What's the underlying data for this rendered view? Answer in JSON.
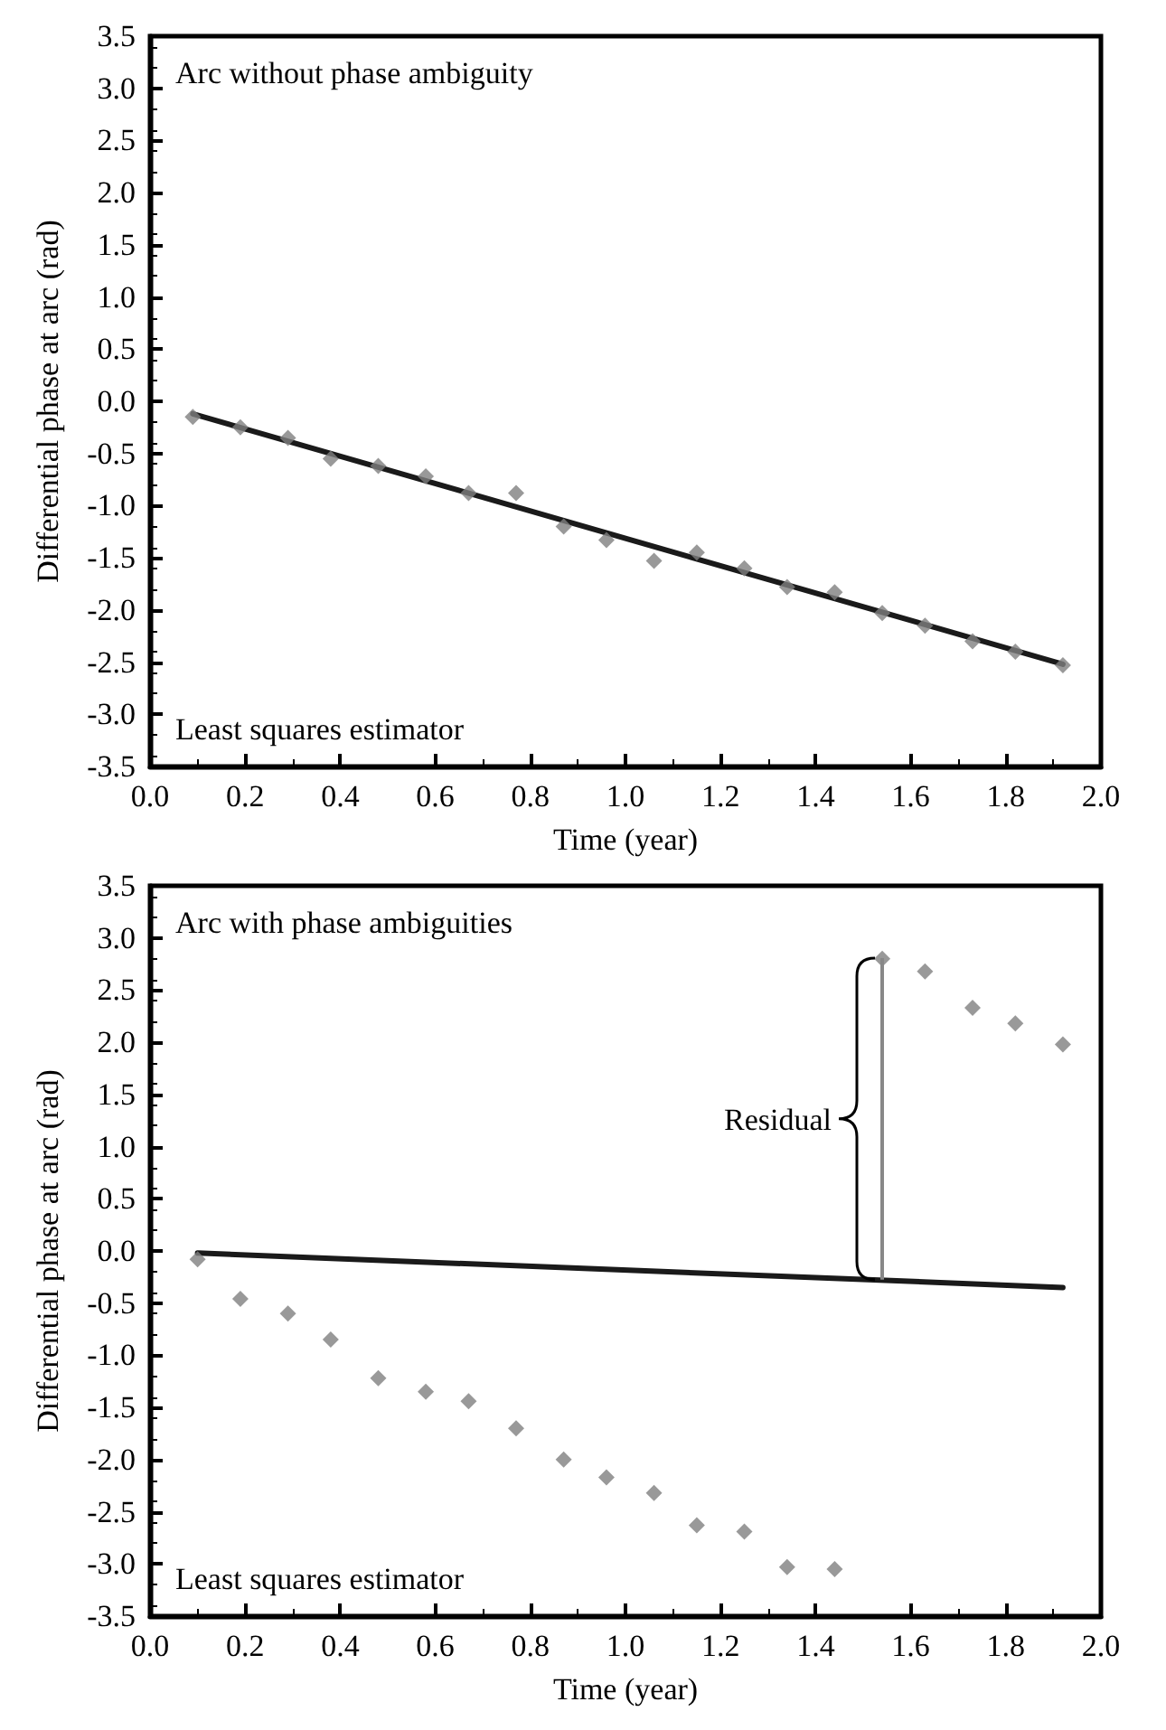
{
  "chart_data": [
    {
      "type": "scatter",
      "title": "Arc without phase ambiguity",
      "xlabel": "Time (year)",
      "ylabel": "Differential phase at arc (rad)",
      "x": [
        0.09,
        0.19,
        0.29,
        0.38,
        0.48,
        0.58,
        0.67,
        0.77,
        0.87,
        0.96,
        1.06,
        1.15,
        1.25,
        1.34,
        1.44,
        1.54,
        1.63,
        1.73,
        1.82,
        1.92
      ],
      "grid": false,
      "series": [
        {
          "marker": "diamond",
          "color": "#808080",
          "values": [
            -0.15,
            -0.25,
            -0.35,
            -0.55,
            -0.62,
            -0.72,
            -0.88,
            -0.88,
            -1.2,
            -1.33,
            -1.53,
            -1.45,
            -1.6,
            -1.78,
            -1.83,
            -2.03,
            -2.15,
            -2.3,
            -2.4,
            -2.53
          ]
        },
        {
          "type": "line",
          "color": "#1a1a1a",
          "x": [
            0.09,
            1.92
          ],
          "values": [
            -0.12,
            -2.52
          ]
        }
      ],
      "xlim": [
        0,
        2
      ],
      "xticks": [
        {
          "value": 0,
          "label": "0.0"
        },
        0.2,
        0.4,
        0.6,
        0.8,
        {
          "value": 1,
          "label": "1.0"
        },
        1.2,
        1.4,
        1.6,
        1.8,
        {
          "value": 2,
          "label": "2.0"
        }
      ],
      "ylim": [
        -3.5,
        3.5
      ],
      "yticks": [
        -3.5,
        {
          "value": -3,
          "label": "-3.0"
        },
        -2.5,
        {
          "value": -2,
          "label": "-2.0"
        },
        -1.5,
        {
          "value": -1,
          "label": "-1.0"
        },
        -0.5,
        {
          "value": 0,
          "label": "0.0"
        },
        0.5,
        {
          "value": 1,
          "label": "1.0"
        },
        1.5,
        {
          "value": 2,
          "label": "2.0"
        },
        2.5,
        {
          "value": 3,
          "label": "3.0"
        },
        3.5
      ],
      "annotations": [
        "Least squares estimator"
      ]
    },
    {
      "type": "scatter",
      "title": "Arc with phase ambiguities",
      "xlabel": "Time (year)",
      "ylabel": "Differential phase at arc (rad)",
      "x": [
        0.1,
        0.19,
        0.29,
        0.38,
        0.48,
        0.58,
        0.67,
        0.77,
        0.87,
        0.96,
        1.06,
        1.15,
        1.25,
        1.34,
        1.44,
        1.54,
        1.63,
        1.73,
        1.82,
        1.92
      ],
      "grid": false,
      "series": [
        {
          "marker": "diamond",
          "color": "#808080",
          "values": [
            -0.08,
            -0.46,
            -0.6,
            -0.85,
            -1.22,
            -1.35,
            -1.44,
            -1.7,
            -2.0,
            -2.17,
            -2.32,
            -2.63,
            -2.69,
            -3.03,
            -3.05,
            2.8,
            2.68,
            2.33,
            2.18,
            1.98
          ]
        },
        {
          "type": "line",
          "color": "#1a1a1a",
          "x": [
            0.1,
            1.92
          ],
          "values": [
            -0.02,
            -0.35
          ]
        }
      ],
      "xlim": [
        0,
        2
      ],
      "xticks": [
        {
          "value": 0,
          "label": "0.0"
        },
        0.2,
        0.4,
        0.6,
        0.8,
        {
          "value": 1,
          "label": "1.0"
        },
        1.2,
        1.4,
        1.6,
        1.8,
        {
          "value": 2,
          "label": "2.0"
        }
      ],
      "ylim": [
        -3.5,
        3.5
      ],
      "yticks": [
        -3.5,
        {
          "value": -3,
          "label": "-3.0"
        },
        -2.5,
        {
          "value": -2,
          "label": "-2.0"
        },
        -1.5,
        {
          "value": -1,
          "label": "-1.0"
        },
        -0.5,
        {
          "value": 0,
          "label": "0.0"
        },
        0.5,
        {
          "value": 1,
          "label": "1.0"
        },
        1.5,
        {
          "value": 2,
          "label": "2.0"
        },
        2.5,
        {
          "value": 3,
          "label": "3.0"
        },
        3.5
      ],
      "annotations": [
        "Least squares estimator",
        "Residual"
      ]
    }
  ]
}
